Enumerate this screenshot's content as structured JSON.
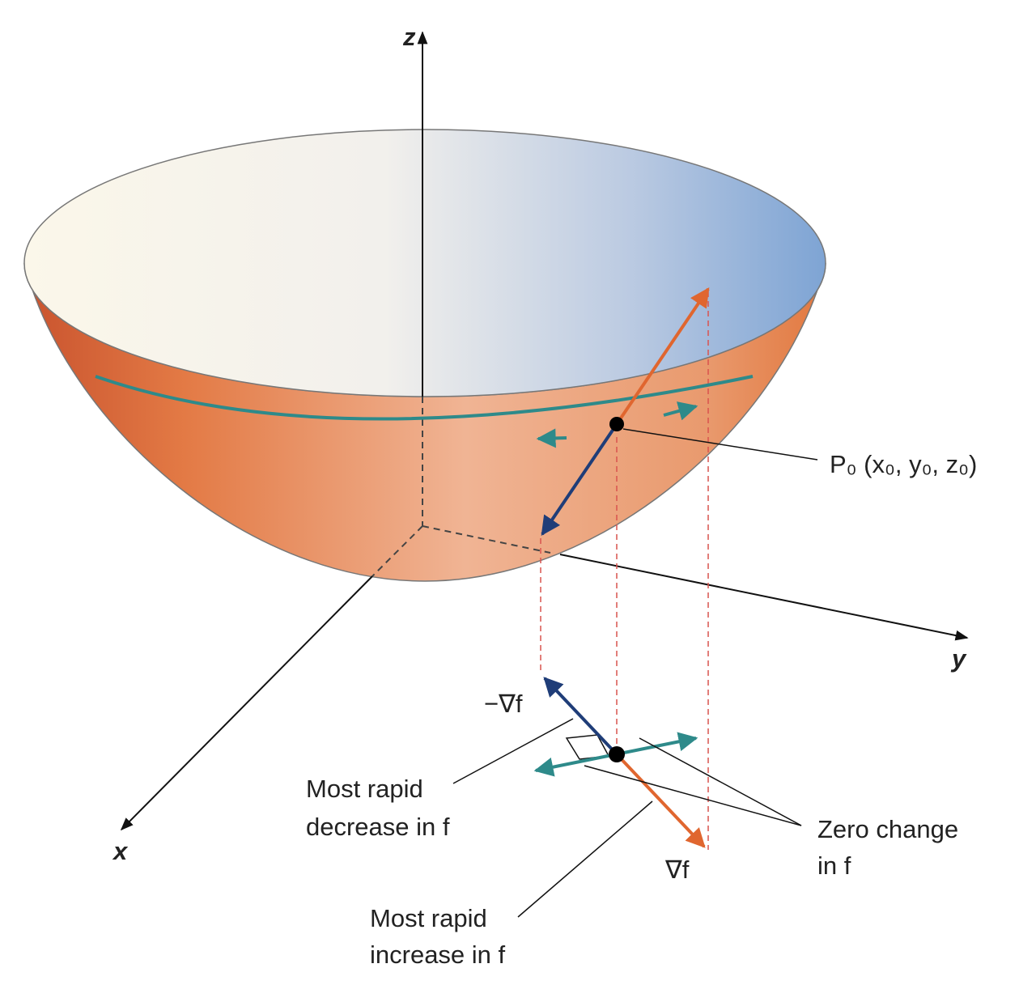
{
  "axes": {
    "z": "z",
    "y": "y",
    "x": "x"
  },
  "point_label": "P₀ (x₀, y₀, z₀)",
  "neg_gradient_label": "−∇f",
  "gradient_label": "∇f",
  "decrease_label": [
    "Most rapid",
    "decrease in f"
  ],
  "increase_label": [
    "Most rapid",
    "increase in f"
  ],
  "zero_change_label": [
    "Zero change",
    "in f"
  ]
}
